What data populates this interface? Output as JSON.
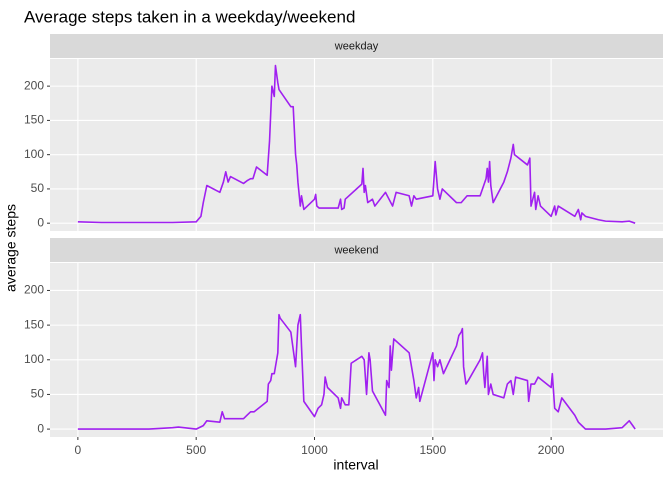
{
  "chart_data": {
    "type": "line",
    "title": "Average steps taken in a weekday/weekend",
    "x_label": "interval",
    "y_label": "average steps",
    "color": "#a020f0",
    "grid": true,
    "xlim": [
      -117.75,
      2472.75
    ],
    "xticks": [
      0,
      500,
      1000,
      1500,
      2000
    ],
    "ylim": [
      -11.4,
      239.6
    ],
    "yticks": [
      0,
      50,
      100,
      150,
      200
    ],
    "panels": [
      {
        "name": "weekday",
        "x": [
          0,
          100,
          200,
          300,
          400,
          500,
          520,
          530,
          545,
          600,
          615,
          625,
          635,
          645,
          700,
          715,
          730,
          740,
          755,
          800,
          810,
          820,
          830,
          835,
          845,
          850,
          900,
          910,
          920,
          925,
          930,
          940,
          945,
          955,
          1000,
          1005,
          1010,
          1020,
          1100,
          1110,
          1115,
          1125,
          1130,
          1200,
          1205,
          1210,
          1215,
          1225,
          1245,
          1255,
          1300,
          1330,
          1345,
          1400,
          1410,
          1420,
          1430,
          1500,
          1510,
          1520,
          1530,
          1540,
          1600,
          1620,
          1645,
          1700,
          1715,
          1725,
          1730,
          1735,
          1740,
          1745,
          1755,
          1800,
          1815,
          1830,
          1840,
          1845,
          1900,
          1910,
          1915,
          1930,
          1935,
          1945,
          1955,
          2000,
          2015,
          2020,
          2030,
          2100,
          2115,
          2125,
          2130,
          2145,
          2200,
          2230,
          2300,
          2330,
          2355
        ],
        "values": [
          2,
          1,
          1,
          1,
          1,
          2,
          10,
          30,
          55,
          45,
          60,
          75,
          60,
          68,
          58,
          62,
          65,
          65,
          82,
          70,
          120,
          200,
          185,
          230,
          205,
          195,
          170,
          170,
          100,
          85,
          60,
          25,
          40,
          20,
          35,
          42,
          25,
          22,
          22,
          35,
          20,
          22,
          35,
          57,
          80,
          45,
          55,
          30,
          35,
          25,
          45,
          25,
          45,
          40,
          25,
          40,
          35,
          40,
          90,
          50,
          35,
          50,
          30,
          30,
          40,
          40,
          55,
          65,
          80,
          60,
          90,
          55,
          30,
          60,
          75,
          95,
          115,
          100,
          85,
          95,
          25,
          45,
          20,
          40,
          25,
          10,
          25,
          12,
          25,
          10,
          20,
          5,
          15,
          10,
          5,
          3,
          2,
          3,
          0
        ]
      },
      {
        "name": "weekend",
        "x": [
          0,
          100,
          200,
          300,
          400,
          425,
          500,
          530,
          545,
          600,
          610,
          620,
          700,
          715,
          730,
          745,
          800,
          805,
          815,
          820,
          830,
          845,
          850,
          855,
          900,
          920,
          930,
          940,
          945,
          955,
          1000,
          1015,
          1030,
          1040,
          1045,
          1055,
          1100,
          1110,
          1115,
          1130,
          1145,
          1155,
          1200,
          1210,
          1220,
          1230,
          1235,
          1245,
          1300,
          1305,
          1315,
          1320,
          1325,
          1335,
          1400,
          1420,
          1430,
          1440,
          1445,
          1500,
          1505,
          1510,
          1520,
          1530,
          1545,
          1600,
          1610,
          1620,
          1625,
          1630,
          1640,
          1650,
          1700,
          1710,
          1715,
          1720,
          1730,
          1735,
          1745,
          1755,
          1800,
          1815,
          1830,
          1840,
          1850,
          1900,
          1905,
          1915,
          1930,
          1945,
          2000,
          2005,
          2010,
          2015,
          2030,
          2045,
          2100,
          2115,
          2130,
          2145,
          2200,
          2230,
          2300,
          2330,
          2345,
          2355
        ],
        "values": [
          0,
          0,
          0,
          0,
          2,
          3,
          0,
          5,
          12,
          10,
          25,
          15,
          15,
          20,
          25,
          25,
          40,
          65,
          70,
          80,
          80,
          110,
          165,
          160,
          140,
          90,
          150,
          165,
          120,
          40,
          18,
          30,
          35,
          50,
          75,
          60,
          45,
          30,
          45,
          35,
          35,
          95,
          105,
          100,
          50,
          110,
          100,
          55,
          20,
          70,
          60,
          120,
          85,
          130,
          110,
          70,
          45,
          60,
          40,
          110,
          70,
          100,
          90,
          100,
          80,
          120,
          135,
          140,
          145,
          90,
          65,
          70,
          100,
          110,
          80,
          60,
          105,
          50,
          65,
          50,
          45,
          65,
          70,
          50,
          75,
          70,
          40,
          65,
          65,
          75,
          60,
          80,
          55,
          30,
          25,
          45,
          20,
          10,
          5,
          0,
          0,
          0,
          2,
          12,
          5,
          0
        ]
      }
    ]
  }
}
